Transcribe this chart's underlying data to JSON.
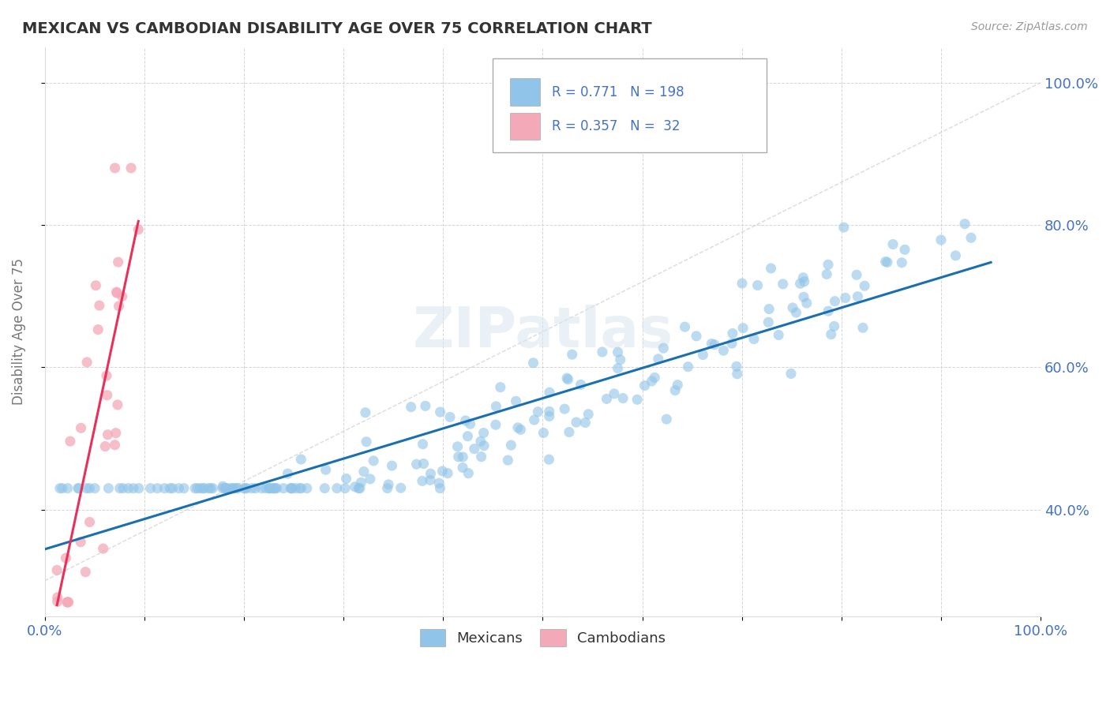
{
  "title": "MEXICAN VS CAMBODIAN DISABILITY AGE OVER 75 CORRELATION CHART",
  "source_text": "Source: ZipAtlas.com",
  "ylabel": "Disability Age Over 75",
  "xlim": [
    0.0,
    1.0
  ],
  "ylim": [
    0.25,
    1.05
  ],
  "xticks": [
    0.0,
    0.1,
    0.2,
    0.3,
    0.4,
    0.5,
    0.6,
    0.7,
    0.8,
    0.9,
    1.0
  ],
  "yticks": [
    0.4,
    0.6,
    0.8,
    1.0
  ],
  "mexican_color": "#90c4e8",
  "cambodian_color": "#f4a9b8",
  "mexican_trend_color": "#1a6faf",
  "cambodian_trend_color": "#e8305a",
  "mexican_R": 0.771,
  "mexican_N": 198,
  "cambodian_R": 0.357,
  "cambodian_N": 32,
  "legend_mexican_label": "Mexicans",
  "legend_cambodian_label": "Cambodians",
  "watermark": "ZIPatlas",
  "background_color": "#ffffff",
  "grid_color": "#cccccc",
  "title_color": "#333333",
  "axis_label_color": "#777777",
  "tick_label_color": "#4472c4",
  "stats_color": "#4472c4",
  "ref_line_color": "#cccccc"
}
